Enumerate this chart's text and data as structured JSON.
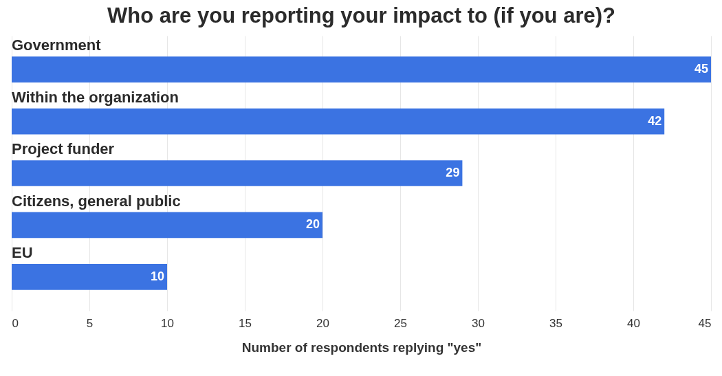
{
  "chart_data": {
    "type": "bar",
    "orientation": "horizontal",
    "title": "Who are you reporting your impact to (if you are)?",
    "xlabel": "Number of respondents replying \"yes\"",
    "categories": [
      "Government",
      "Within the organization",
      "Project funder",
      "Citizens, general public",
      "EU"
    ],
    "values": [
      45,
      42,
      29,
      20,
      10
    ],
    "color": "#3b73e2",
    "xlim": [
      0,
      45
    ],
    "xticks": [
      0,
      5,
      10,
      15,
      20,
      25,
      30,
      35,
      40,
      45
    ],
    "grid": "x",
    "data_labels": true
  }
}
